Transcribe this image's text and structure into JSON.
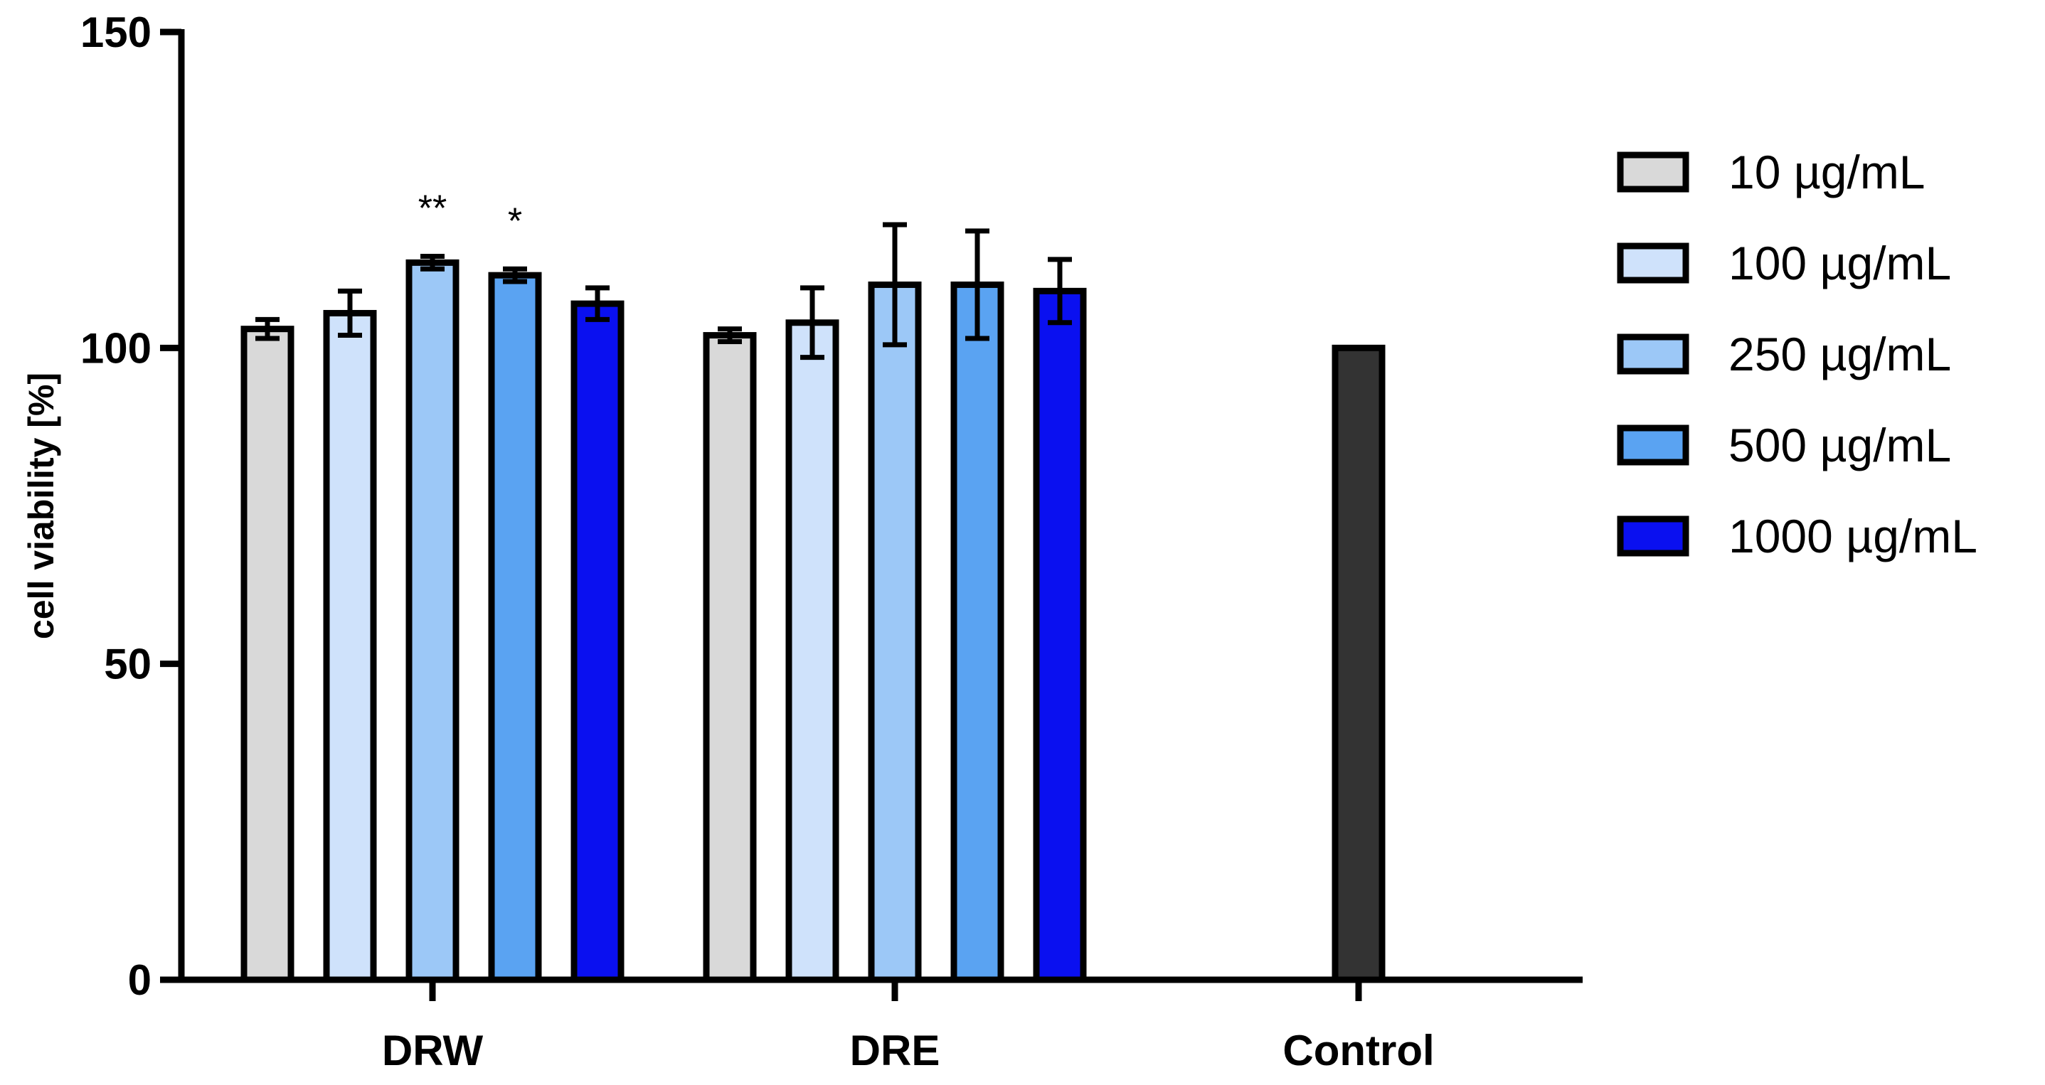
{
  "chart_data": {
    "type": "bar",
    "title": "",
    "xlabel": "",
    "ylabel": "cell viability [%]",
    "ylim": [
      0,
      150
    ],
    "yticks": [
      0,
      50,
      100,
      150
    ],
    "categories": [
      "DRW",
      "DRE",
      "Control"
    ],
    "series": [
      {
        "name": "10 µg/mL",
        "color": "#d9d9d9",
        "values": [
          103,
          102,
          null
        ],
        "errors": [
          1.5,
          1.0,
          null
        ]
      },
      {
        "name": "100 µg/mL",
        "color": "#cfe2fb",
        "values": [
          105.5,
          104,
          null
        ],
        "errors": [
          3.5,
          5.5,
          null
        ]
      },
      {
        "name": "250 µg/mL",
        "color": "#9cc8f7",
        "values": [
          113.5,
          110,
          null
        ],
        "errors": [
          1.0,
          9.5,
          null
        ]
      },
      {
        "name": "500 µg/mL",
        "color": "#5aa3f2",
        "values": [
          111.5,
          110,
          null
        ],
        "errors": [
          1.0,
          8.5,
          null
        ]
      },
      {
        "name": "1000 µg/mL",
        "color": "#0a10f0",
        "values": [
          107,
          109,
          null
        ],
        "errors": [
          2.5,
          5.0,
          null
        ]
      }
    ],
    "control": {
      "category": "Control",
      "value": 100,
      "color": "#333333"
    },
    "annotations": [
      {
        "category": "DRW",
        "series": "250 µg/mL",
        "text": "**"
      },
      {
        "category": "DRW",
        "series": "500 µg/mL",
        "text": "*"
      }
    ],
    "grid": false,
    "legend_position": "right"
  }
}
